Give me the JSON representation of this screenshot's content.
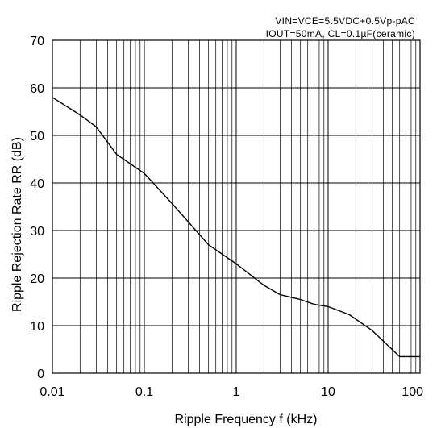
{
  "chart_data": {
    "type": "line",
    "annotations": [
      "VIN=VCE=5.5VDC+0.5Vp-pAC",
      "IOUT=50mA, CL=0.1µF(ceramic)"
    ],
    "xlabel": "Ripple Frequency f (kHz)",
    "ylabel": "Ripple Rejection Rate RR (dB)",
    "x_scale": "log",
    "xlim": [
      0.01,
      100
    ],
    "ylim": [
      0,
      70
    ],
    "x_ticks": [
      0.01,
      0.1,
      1,
      10,
      100
    ],
    "x_tick_labels": [
      "0.01",
      "0.1",
      "1",
      "10",
      "100"
    ],
    "y_ticks": [
      0,
      10,
      20,
      30,
      40,
      50,
      60,
      70
    ],
    "y_tick_labels": [
      "0",
      "10",
      "20",
      "30",
      "40",
      "50",
      "60",
      "70"
    ],
    "grid": true,
    "series": [
      {
        "x": [
          0.01,
          0.02,
          0.03,
          0.05,
          0.1,
          0.2,
          0.5,
          1,
          2,
          3,
          5,
          7,
          10,
          17,
          30,
          60,
          100
        ],
        "y": [
          58,
          54.3,
          51.8,
          46,
          42,
          35.7,
          27,
          23,
          18.5,
          16.5,
          15.5,
          14.5,
          14,
          12.3,
          9,
          3.5,
          3.5
        ]
      }
    ]
  }
}
